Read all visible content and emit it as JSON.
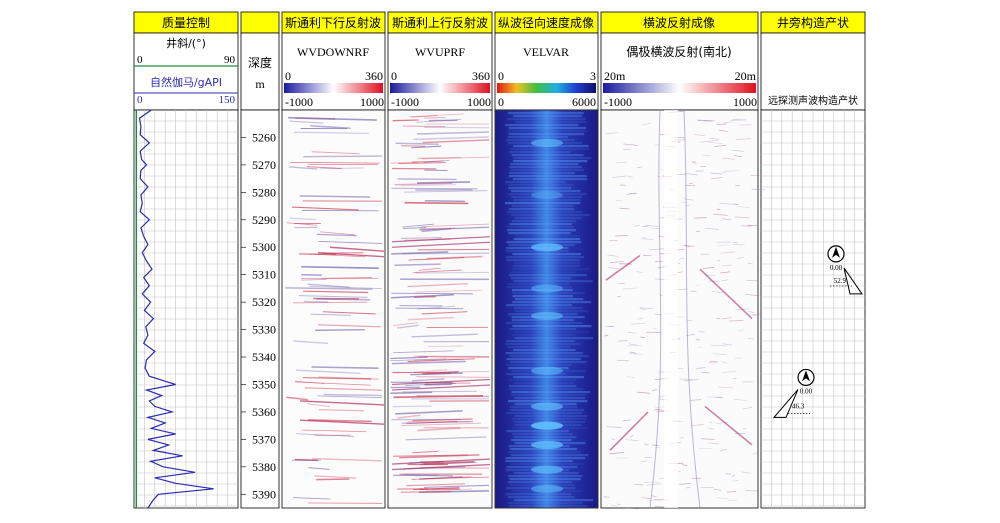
{
  "tracks": {
    "qc": "质量控制",
    "depth": "",
    "down": "斯通利下行反射波",
    "up": "斯通利上行反射波",
    "vel": "纵波径向速度成像",
    "shear": "横波反射成像",
    "struct": "井旁构造产状"
  },
  "qc": {
    "incl_label": "井斜/(°)",
    "incl_min": "0",
    "incl_max": "90",
    "gr_label": "自然伽马/gAPI",
    "gr_min": "0",
    "gr_max": "150"
  },
  "depth": {
    "label": "深度",
    "unit": "m"
  },
  "down": {
    "curve": "WVDOWNRF",
    "scale_min": "0",
    "scale_max": "360",
    "amp_min": "-1000",
    "amp_max": "1000"
  },
  "up": {
    "curve": "WVUPRF",
    "scale_min": "0",
    "scale_max": "360",
    "amp_min": "-1000",
    "amp_max": "1000"
  },
  "vel": {
    "curve": "VELVAR",
    "scale_min": "0",
    "scale_max": "3",
    "amp_min": "0",
    "amp_max": "6000"
  },
  "shear": {
    "curve": "偶极横波反射(南北)",
    "scale_min": "20m",
    "scale_max": "20m",
    "amp_min": "-1000",
    "amp_max": "1000"
  },
  "struct": {
    "sub": "远探测声波构造产状"
  },
  "colors": {
    "header_bg": "#ffff00",
    "grid": "#b8b8b8",
    "gr_curve": "#2b2bb0",
    "incl_curve": "#1e8c3a",
    "refl_red": "#c8324b",
    "vel_dark": "#12127a",
    "vel_bright": "#3da8ff"
  },
  "chart_data": {
    "type": "line",
    "depth_range": [
      5250,
      5395
    ],
    "depth_ticks": [
      "5260",
      "5270",
      "5280",
      "5290",
      "5300",
      "5310",
      "5320",
      "5330",
      "5340",
      "5350",
      "5360",
      "5370",
      "5380",
      "5390"
    ],
    "series": [
      {
        "unit": "gAPI",
        "x_range": [
          0,
          150
        ],
        "depth": [
          5250,
          5253,
          5256,
          5259,
          5262,
          5265,
          5268,
          5270,
          5272,
          5275,
          5278,
          5281,
          5284,
          5287,
          5290,
          5293,
          5296,
          5299,
          5302,
          5305,
          5308,
          5311,
          5314,
          5317,
          5320,
          5323,
          5326,
          5329,
          5332,
          5335,
          5338,
          5341,
          5344,
          5347,
          5350,
          5352,
          5354,
          5356,
          5358,
          5360,
          5362,
          5364,
          5366,
          5368,
          5370,
          5372,
          5374,
          5376,
          5378,
          5380,
          5382,
          5384,
          5386,
          5388,
          5390,
          5392,
          5395
        ],
        "values": [
          25,
          8,
          10,
          9,
          22,
          9,
          11,
          18,
          10,
          9,
          20,
          10,
          12,
          9,
          22,
          10,
          14,
          20,
          12,
          18,
          26,
          14,
          22,
          12,
          24,
          15,
          28,
          17,
          20,
          14,
          30,
          18,
          16,
          22,
          60,
          18,
          40,
          22,
          30,
          55,
          20,
          45,
          25,
          60,
          20,
          50,
          28,
          70,
          24,
          42,
          88,
          30,
          60,
          115,
          35,
          28,
          20
        ]
      },
      {
        "unit": "°",
        "x_range": [
          0,
          90
        ],
        "depth": [
          5250,
          5395
        ],
        "values": [
          2,
          2
        ]
      }
    ],
    "structure_points": [
      {
        "depth": 5317,
        "azimuth": "0.00",
        "dip": "52.9"
      },
      {
        "depth": 5362,
        "azimuth": "0.00",
        "dip": "46.3"
      }
    ]
  }
}
